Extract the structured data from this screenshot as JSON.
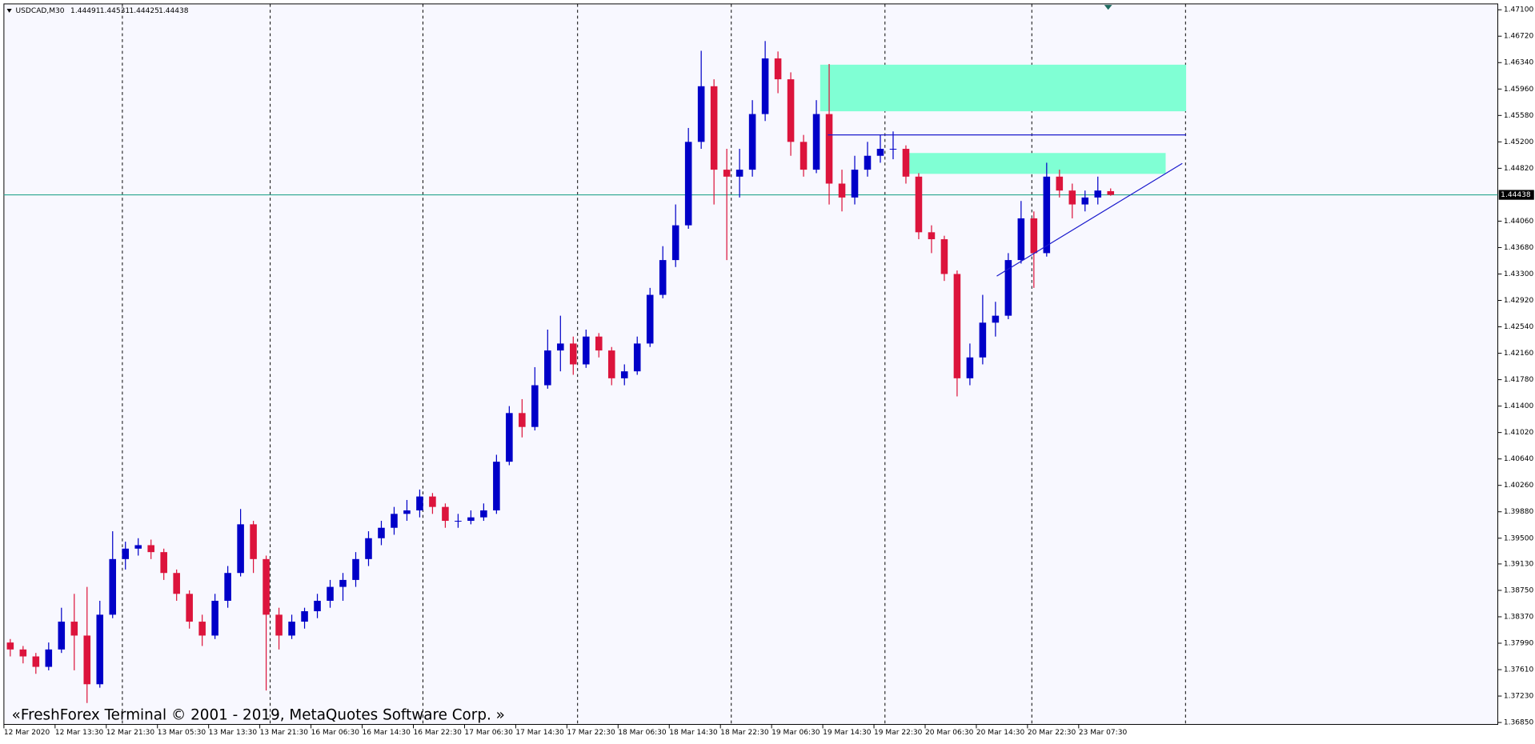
{
  "chart_data": {
    "type": "candlestick",
    "header": {
      "symbol": "USDCAD,M30",
      "open": 1.44491,
      "high": 1.44531,
      "low": 1.44425,
      "close": 1.44438
    },
    "footer": "«FreshForex Terminal © 2001 - 2019, MetaQuotes Software Corp. »",
    "categories": [
      "12 Mar 2020",
      null,
      null,
      null,
      "12 Mar 13:30",
      null,
      null,
      null,
      "12 Mar 21:30",
      null,
      null,
      null,
      "13 Mar 05:30",
      null,
      null,
      null,
      "13 Mar 13:30",
      null,
      null,
      null,
      "13 Mar 21:30",
      null,
      null,
      null,
      "16 Mar 06:30",
      null,
      null,
      null,
      "16 Mar 14:30",
      null,
      null,
      null,
      "16 Mar 22:30",
      null,
      null,
      null,
      "17 Mar 06:30",
      null,
      null,
      null,
      "17 Mar 14:30",
      null,
      null,
      null,
      "17 Mar 22:30",
      null,
      null,
      null,
      "18 Mar 06:30",
      null,
      null,
      null,
      "18 Mar 14:30",
      null,
      null,
      null,
      "18 Mar 22:30",
      null,
      null,
      null,
      "19 Mar 06:30",
      null,
      null,
      null,
      "19 Mar 14:30",
      null,
      null,
      null,
      "19 Mar 22:30",
      null,
      null,
      null,
      "20 Mar 06:30",
      null,
      null,
      null,
      "20 Mar 14:30",
      null,
      null,
      null,
      "20 Mar 22:30",
      null,
      null,
      null,
      "23 Mar 07:30",
      null,
      null
    ],
    "open": [
      1.38,
      1.379,
      1.378,
      1.3765,
      1.379,
      1.383,
      1.381,
      1.374,
      1.384,
      1.392,
      1.3935,
      1.394,
      1.393,
      1.39,
      1.387,
      1.383,
      1.381,
      1.386,
      1.39,
      1.397,
      1.392,
      1.384,
      1.381,
      1.383,
      1.3845,
      1.386,
      1.388,
      1.389,
      1.392,
      1.395,
      1.3965,
      1.3985,
      1.399,
      1.401,
      1.3995,
      1.3975,
      1.3975,
      1.398,
      1.399,
      1.406,
      1.413,
      1.411,
      1.417,
      1.422,
      1.423,
      1.42,
      1.424,
      1.422,
      1.418,
      1.419,
      1.423,
      1.43,
      1.435,
      1.44,
      1.452,
      1.46,
      1.448,
      1.447,
      1.448,
      1.456,
      1.464,
      1.461,
      1.452,
      1.448,
      1.456,
      1.446,
      1.444,
      1.448,
      1.45,
      1.451,
      1.451,
      1.447,
      1.439,
      1.438,
      1.433,
      1.418,
      1.421,
      1.426,
      1.427,
      1.435,
      1.441,
      1.436,
      1.447,
      1.445,
      1.443,
      1.444,
      1.44491
    ],
    "high": [
      1.3805,
      1.3795,
      1.3785,
      1.38,
      1.385,
      1.387,
      1.388,
      1.386,
      1.396,
      1.3945,
      1.395,
      1.3948,
      1.3935,
      1.3905,
      1.3875,
      1.384,
      1.387,
      1.391,
      1.3992,
      1.3975,
      1.3925,
      1.385,
      1.384,
      1.385,
      1.387,
      1.389,
      1.39,
      1.393,
      1.396,
      1.3975,
      1.3995,
      1.4005,
      1.402,
      1.4015,
      1.4,
      1.3985,
      1.399,
      1.4,
      1.407,
      1.414,
      1.415,
      1.4196,
      1.425,
      1.427,
      1.424,
      1.425,
      1.4245,
      1.4225,
      1.42,
      1.424,
      1.431,
      1.437,
      1.443,
      1.454,
      1.4651,
      1.461,
      1.451,
      1.451,
      1.458,
      1.4665,
      1.465,
      1.462,
      1.453,
      1.458,
      1.4632,
      1.448,
      1.45,
      1.452,
      1.453,
      1.4535,
      1.4515,
      1.4475,
      1.44,
      1.4385,
      1.4335,
      1.423,
      1.43,
      1.429,
      1.436,
      1.4435,
      1.442,
      1.449,
      1.448,
      1.446,
      1.445,
      1.447,
      1.44531
    ],
    "low": [
      1.378,
      1.377,
      1.3755,
      1.376,
      1.3785,
      1.376,
      1.3713,
      1.3735,
      1.3835,
      1.3905,
      1.3925,
      1.392,
      1.389,
      1.386,
      1.382,
      1.3795,
      1.3805,
      1.385,
      1.3895,
      1.39,
      1.3731,
      1.379,
      1.3805,
      1.382,
      1.3835,
      1.385,
      1.386,
      1.388,
      1.391,
      1.394,
      1.3955,
      1.3975,
      1.398,
      1.3985,
      1.3965,
      1.3965,
      1.397,
      1.3975,
      1.3985,
      1.4055,
      1.4095,
      1.4105,
      1.4165,
      1.419,
      1.4185,
      1.4195,
      1.421,
      1.417,
      1.417,
      1.4185,
      1.4225,
      1.4295,
      1.434,
      1.4395,
      1.451,
      1.443,
      1.435,
      1.444,
      1.447,
      1.455,
      1.459,
      1.45,
      1.447,
      1.4475,
      1.443,
      1.442,
      1.443,
      1.447,
      1.449,
      1.4495,
      1.446,
      1.438,
      1.436,
      1.432,
      1.4154,
      1.417,
      1.42,
      1.424,
      1.4265,
      1.4345,
      1.431,
      1.4355,
      1.444,
      1.441,
      1.442,
      1.443,
      1.44425
    ],
    "close": [
      1.379,
      1.378,
      1.3765,
      1.379,
      1.383,
      1.381,
      1.374,
      1.384,
      1.392,
      1.3935,
      1.394,
      1.393,
      1.39,
      1.387,
      1.383,
      1.381,
      1.386,
      1.39,
      1.397,
      1.392,
      1.384,
      1.381,
      1.383,
      1.3845,
      1.386,
      1.388,
      1.389,
      1.392,
      1.395,
      1.3965,
      1.3985,
      1.399,
      1.401,
      1.3995,
      1.3975,
      1.3975,
      1.398,
      1.399,
      1.406,
      1.413,
      1.411,
      1.417,
      1.422,
      1.423,
      1.42,
      1.424,
      1.422,
      1.418,
      1.419,
      1.423,
      1.43,
      1.435,
      1.44,
      1.452,
      1.46,
      1.448,
      1.447,
      1.448,
      1.456,
      1.464,
      1.461,
      1.452,
      1.448,
      1.456,
      1.446,
      1.444,
      1.448,
      1.45,
      1.451,
      1.451,
      1.447,
      1.439,
      1.438,
      1.433,
      1.418,
      1.421,
      1.426,
      1.427,
      1.435,
      1.441,
      1.436,
      1.447,
      1.445,
      1.443,
      1.444,
      1.445,
      1.44438
    ],
    "up_color": "#0000c8",
    "down_color": "#dc143c",
    "ylim": [
      1.36822,
      1.47184
    ],
    "yticks": [
      {
        "value": 1.471,
        "label": "1.47100"
      },
      {
        "value": 1.4672,
        "label": "1.46720"
      },
      {
        "value": 1.4634,
        "label": "1.46340"
      },
      {
        "value": 1.4596,
        "label": "1.45960"
      },
      {
        "value": 1.4558,
        "label": "1.45580"
      },
      {
        "value": 1.452,
        "label": "1.45200"
      },
      {
        "value": 1.4482,
        "label": "1.44820"
      },
      {
        "value": 1.4406,
        "label": "1.44060"
      },
      {
        "value": 1.4368,
        "label": "1.43680"
      },
      {
        "value": 1.433,
        "label": "1.43300"
      },
      {
        "value": 1.4292,
        "label": "1.42920"
      },
      {
        "value": 1.4254,
        "label": "1.42540"
      },
      {
        "value": 1.4216,
        "label": "1.42160"
      },
      {
        "value": 1.4178,
        "label": "1.41780"
      },
      {
        "value": 1.414,
        "label": "1.41400"
      },
      {
        "value": 1.4102,
        "label": "1.41020"
      },
      {
        "value": 1.4064,
        "label": "1.40640"
      },
      {
        "value": 1.4026,
        "label": "1.40260"
      },
      {
        "value": 1.3988,
        "label": "1.39880"
      },
      {
        "value": 1.395,
        "label": "1.39500"
      },
      {
        "value": 1.3913,
        "label": "1.39130"
      },
      {
        "value": 1.3875,
        "label": "1.38750"
      },
      {
        "value": 1.3837,
        "label": "1.38370"
      },
      {
        "value": 1.3799,
        "label": "1.37990"
      },
      {
        "value": 1.3761,
        "label": "1.37610"
      },
      {
        "value": 1.3723,
        "label": "1.37230"
      },
      {
        "value": 1.3685,
        "label": "1.36850"
      }
    ],
    "current_price": 1.44438,
    "current_price_color": "#2aa58f",
    "zones": [
      {
        "x": [
          63.3,
          91.9
        ],
        "price": [
          1.4631,
          1.4564
        ]
      },
      {
        "x": [
          70.0,
          90.3
        ],
        "price": [
          1.4504,
          1.4474
        ]
      }
    ],
    "zone_color": "#80ffd4",
    "lines": [
      {
        "x": [
          63.9,
          91.9
        ],
        "price": [
          1.453,
          1.453
        ]
      },
      {
        "x": [
          77.1,
          91.6
        ],
        "price": [
          1.4327,
          1.4489
        ]
      }
    ],
    "line_color": "#1a1acd"
  }
}
